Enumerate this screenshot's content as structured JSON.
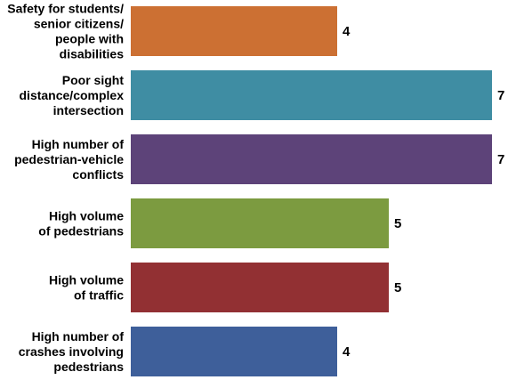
{
  "chart_data": {
    "type": "bar",
    "orientation": "horizontal",
    "categories": [
      [
        "Safety for students/",
        "senior citizens/",
        "people with",
        "disabilities"
      ],
      [
        "Poor sight",
        "distance/complex",
        "intersection"
      ],
      [
        "High number of",
        "pedestrian-vehicle",
        "conflicts"
      ],
      [
        "High volume",
        "of pedestrians"
      ],
      [
        "High volume",
        "of traffic"
      ],
      [
        "High number of",
        "crashes involving",
        "pedestrians"
      ]
    ],
    "values": [
      4,
      7,
      7,
      5,
      5,
      4
    ],
    "value_labels": [
      "4",
      "7",
      "7",
      "5",
      "5",
      "4"
    ],
    "colors": [
      "#CC7033",
      "#3F8DA3",
      "#5D4379",
      "#7C9B40",
      "#923033",
      "#3E5F9A"
    ],
    "xlim": [
      0,
      7
    ],
    "grid": false,
    "legend": "none"
  }
}
